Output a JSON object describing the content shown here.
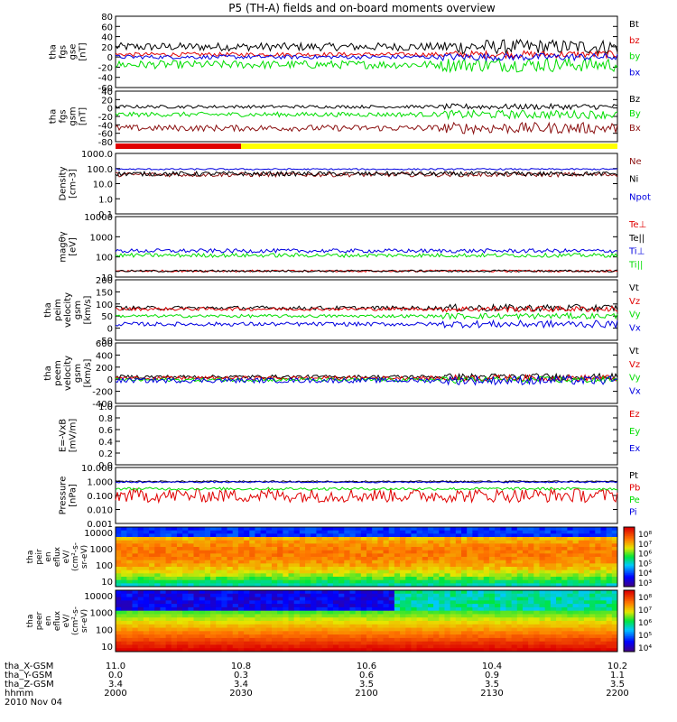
{
  "title": "P5 (TH-A) fields and on-board moments overview",
  "colors": {
    "black": "#000000",
    "red": "#e00000",
    "green": "#00dd00",
    "blue": "#0000e0",
    "darkred": "#8b1010",
    "yellow": "#ffff00",
    "navy": "#1020a0"
  },
  "chart_data": {
    "type": "line",
    "panels": [
      {
        "id": "fgs",
        "ylabel": [
          "tha",
          "fgs",
          "gse",
          "[nT]"
        ],
        "ylim": [
          -60,
          80
        ],
        "ticks": [
          "80",
          "60",
          "40",
          "20",
          "0",
          "-20",
          "-40",
          "-60"
        ],
        "series": [
          {
            "name": "Bt",
            "color": "black",
            "base": 20,
            "amp": 8
          },
          {
            "name": "bz",
            "color": "red",
            "base": 5,
            "amp": 4
          },
          {
            "name": "by",
            "color": "green",
            "base": -15,
            "amp": 8
          },
          {
            "name": "bx",
            "color": "blue",
            "base": 0,
            "amp": 4
          }
        ]
      },
      {
        "id": "fgs_gsm",
        "ylabel": [
          "tha",
          "fgs",
          "gsm",
          "[nT]"
        ],
        "ylim": [
          -90,
          40
        ],
        "ticks": [
          "40",
          "20",
          "0",
          "-20",
          "-40",
          "-60",
          "-80"
        ],
        "series": [
          {
            "name": "Bz",
            "color": "black",
            "base": 0,
            "amp": 4
          },
          {
            "name": "By",
            "color": "green",
            "base": -20,
            "amp": 6
          },
          {
            "name": "Bx",
            "color": "darkred",
            "base": -55,
            "amp": 8
          }
        ]
      },
      {
        "id": "density",
        "ylabel": [
          "Density",
          "[cm-3]"
        ],
        "log": true,
        "ylim": [
          0.1,
          1000
        ],
        "ticks": [
          "1000.0",
          "100.0",
          "10.0",
          "1.0",
          "0.1"
        ],
        "series": [
          {
            "name": "Ne",
            "color": "darkred",
            "base": 40,
            "amp": 0.15
          },
          {
            "name": "Ni",
            "color": "black",
            "base": 45,
            "amp": 0.15
          },
          {
            "name": "Npot",
            "color": "blue",
            "base": 90,
            "amp": 0.05
          }
        ]
      },
      {
        "id": "temp",
        "ylabel": [
          "magθγ",
          "[eV]"
        ],
        "log": true,
        "ylim": [
          10,
          10000
        ],
        "ticks": [
          "10000",
          "1000",
          "100",
          "10"
        ],
        "series": [
          {
            "name": "Te⊥",
            "color": "red",
            "base": 20,
            "amp": 0.05
          },
          {
            "name": "Te||",
            "color": "black",
            "base": 20,
            "amp": 0.05
          },
          {
            "name": "Ti⊥",
            "color": "blue",
            "base": 200,
            "amp": 0.1
          },
          {
            "name": "Ti||",
            "color": "green",
            "base": 120,
            "amp": 0.1
          }
        ]
      },
      {
        "id": "vel1",
        "ylabel": [
          "tha",
          "peim",
          "velocity",
          "gsm",
          "[km/s]"
        ],
        "ylim": [
          -100,
          200
        ],
        "ticks": [
          "200",
          "150",
          "100",
          "50",
          "0",
          "-50"
        ],
        "series": [
          {
            "name": "Vt",
            "color": "black",
            "base": 60,
            "amp": 10
          },
          {
            "name": "Vz",
            "color": "red",
            "base": 55,
            "amp": 8
          },
          {
            "name": "Vy",
            "color": "green",
            "base": 20,
            "amp": 8
          },
          {
            "name": "Vx",
            "color": "blue",
            "base": -20,
            "amp": 10
          }
        ]
      },
      {
        "id": "vel2",
        "ylabel": [
          "tha",
          "peem",
          "velocity",
          "gsm",
          "[km/s]"
        ],
        "ylim": [
          -400,
          600
        ],
        "ticks": [
          "600",
          "400",
          "200",
          "0",
          "-200",
          "-400"
        ],
        "series": [
          {
            "name": "Vt",
            "color": "black",
            "base": 40,
            "amp": 30
          },
          {
            "name": "Vz",
            "color": "red",
            "base": 20,
            "amp": 30
          },
          {
            "name": "Vy",
            "color": "green",
            "base": -10,
            "amp": 30
          },
          {
            "name": "Vx",
            "color": "blue",
            "base": -20,
            "amp": 40
          }
        ]
      },
      {
        "id": "efield",
        "ylabel": [
          "E=-VxB",
          "[mV/m]"
        ],
        "ylim": [
          0,
          1
        ],
        "ticks": [
          "1.0",
          "0.8",
          "0.6",
          "0.4",
          "0.2",
          "0.0"
        ],
        "series": [
          {
            "name": "Ez",
            "color": "red"
          },
          {
            "name": "Ey",
            "color": "green"
          },
          {
            "name": "Ex",
            "color": "blue"
          }
        ]
      },
      {
        "id": "pressure",
        "ylabel": [
          "Pressure",
          "[nPa]"
        ],
        "log": true,
        "ylim": [
          0.001,
          10
        ],
        "ticks": [
          "10.000",
          "1.000",
          "0.100",
          "0.010",
          "0.001"
        ],
        "series": [
          {
            "name": "Pt",
            "color": "black",
            "base": 1.0,
            "amp": 0.05
          },
          {
            "name": "Pb",
            "color": "red",
            "base": 0.1,
            "amp": 0.5
          },
          {
            "name": "Pe",
            "color": "green",
            "base": 0.3,
            "amp": 0.1
          },
          {
            "name": "Pi",
            "color": "blue",
            "base": 0.9,
            "amp": 0.05
          }
        ]
      }
    ],
    "spectrograms": [
      {
        "id": "peir",
        "ylabel": [
          "tha",
          "peir",
          "en",
          "eflux",
          "eV/",
          "(cm²-s-",
          "sr-eV)"
        ],
        "ticks": [
          "10000",
          "1000",
          "100",
          "10"
        ],
        "colorbar": [
          "10⁸",
          "10⁷",
          "10⁶",
          "10⁵",
          "10⁴",
          "10³"
        ]
      },
      {
        "id": "peer",
        "ylabel": [
          "tha",
          "peer",
          "en",
          "eflux",
          "eV/",
          "(cm²-s-",
          "sr-eV)"
        ],
        "ticks": [
          "10000",
          "1000",
          "100",
          "10"
        ],
        "colorbar": [
          "10⁸",
          "10⁷",
          "10⁶",
          "10⁵",
          "10⁴"
        ]
      }
    ],
    "mode_bar": {
      "red_end_fraction": 0.25
    },
    "xaxis": {
      "rows": [
        {
          "label": "tha_X-GSM",
          "values": [
            "11.0",
            "10.8",
            "10.6",
            "10.4",
            "10.2"
          ]
        },
        {
          "label": "tha_Y-GSM",
          "values": [
            "0.0",
            "0.3",
            "0.6",
            "0.9",
            "1.1"
          ]
        },
        {
          "label": "tha_Z-GSM",
          "values": [
            "3.4",
            "3.4",
            "3.5",
            "3.5",
            "3.5"
          ]
        },
        {
          "label": "hhmm",
          "values": [
            "2000",
            "2030",
            "2100",
            "2130",
            "2200"
          ]
        }
      ],
      "date": "2010 Nov 04"
    }
  }
}
